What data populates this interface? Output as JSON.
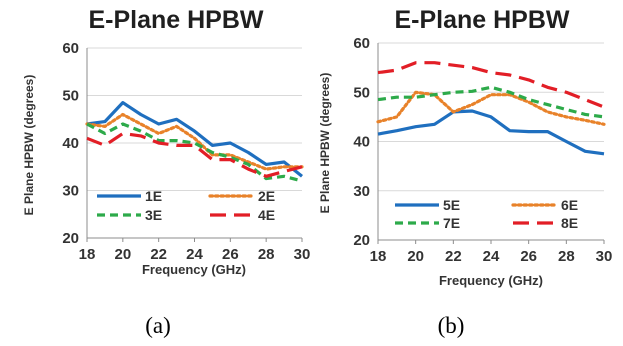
{
  "chart_data": [
    {
      "type": "line",
      "title": "E-Plane HPBW",
      "xlabel": "Frequency (GHz)",
      "ylabel": "E Plane HPBW (degrees)",
      "xlim": [
        18,
        30
      ],
      "ylim": [
        20,
        60
      ],
      "x_ticks": [
        "18",
        "20",
        "22",
        "24",
        "26",
        "28",
        "30"
      ],
      "y_ticks": [
        "20",
        "30",
        "40",
        "50",
        "60"
      ],
      "grid": true,
      "legend_position": "bottom-inside",
      "caption": "(a)",
      "x": [
        18,
        19,
        20,
        21,
        22,
        23,
        24,
        25,
        26,
        27,
        28,
        29,
        30
      ],
      "series": [
        {
          "name": "1E",
          "color": "#1f6fbf",
          "dash": "solid",
          "values": [
            44,
            44.5,
            48.5,
            46,
            44,
            45,
            42.5,
            39.5,
            40,
            38,
            35.5,
            36,
            33
          ]
        },
        {
          "name": "2E",
          "color": "#e8822a",
          "dash": "dotted",
          "values": [
            44,
            43.5,
            46,
            44,
            42,
            43.5,
            41,
            37.5,
            37.5,
            36,
            34.5,
            35,
            35
          ]
        },
        {
          "name": "3E",
          "color": "#2daa4a",
          "dash": "dashed",
          "values": [
            44,
            42,
            44,
            42.5,
            40.5,
            40.5,
            40,
            38,
            37,
            35.5,
            32.5,
            33,
            32
          ]
        },
        {
          "name": "4E",
          "color": "#e21e26",
          "dash": "longdash",
          "values": [
            41,
            39.5,
            42,
            41.5,
            40,
            39.5,
            39.5,
            36.5,
            36.5,
            34.5,
            33,
            34,
            35
          ]
        }
      ]
    },
    {
      "type": "line",
      "title": "E-Plane HPBW",
      "xlabel": "Frequency (GHz)",
      "ylabel": "E Plane HPBW (degrees)",
      "xlim": [
        18,
        30
      ],
      "ylim": [
        20,
        60
      ],
      "x_ticks": [
        "18",
        "20",
        "22",
        "24",
        "26",
        "28",
        "30"
      ],
      "y_ticks": [
        "20",
        "30",
        "40",
        "50",
        "60"
      ],
      "grid": true,
      "legend_position": "bottom-inside",
      "caption": "(b)",
      "x": [
        18,
        19,
        20,
        21,
        22,
        23,
        24,
        25,
        26,
        27,
        28,
        29,
        30
      ],
      "series": [
        {
          "name": "5E",
          "color": "#1f6fbf",
          "dash": "solid",
          "values": [
            41.5,
            42.2,
            43,
            43.5,
            46,
            46.2,
            45,
            42.2,
            42,
            42,
            40,
            38,
            37.5
          ]
        },
        {
          "name": "6E",
          "color": "#e8822a",
          "dash": "dotted",
          "values": [
            44,
            45,
            50,
            49.5,
            46,
            47.5,
            49.5,
            49.5,
            48,
            46,
            45,
            44.3,
            43.5
          ]
        },
        {
          "name": "7E",
          "color": "#2daa4a",
          "dash": "dashed",
          "values": [
            48.5,
            49,
            49,
            49.5,
            50,
            50.2,
            51,
            50,
            48.5,
            47.5,
            46.5,
            45.5,
            45
          ]
        },
        {
          "name": "8E",
          "color": "#e21e26",
          "dash": "longdash",
          "values": [
            54,
            54.5,
            56,
            56,
            55.5,
            55,
            54,
            53.5,
            52.5,
            51,
            50,
            48.5,
            47
          ]
        }
      ]
    }
  ]
}
